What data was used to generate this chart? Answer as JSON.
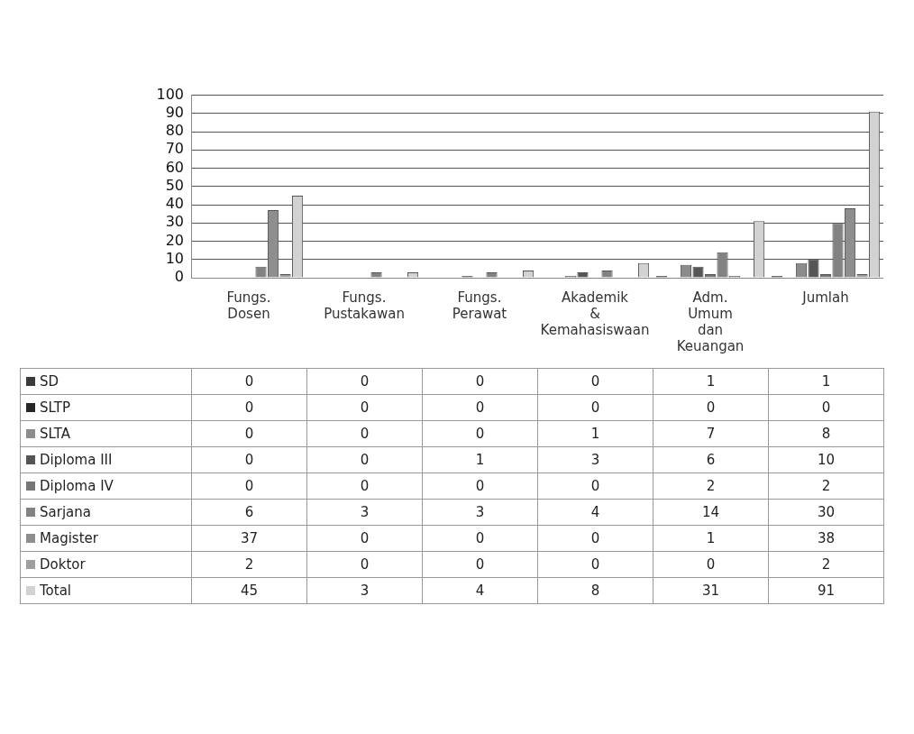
{
  "chart_data": {
    "type": "bar",
    "categories": [
      "Fungs. Dosen",
      "Fungs. Pustakawan",
      "Fungs. Perawat",
      "Akademik & Kemahasiswaan",
      "Adm. Umum dan Keuangan",
      "Jumlah"
    ],
    "series": [
      {
        "name": "SD",
        "color": "#3a3a3a",
        "values": [
          0,
          0,
          0,
          0,
          1,
          1
        ]
      },
      {
        "name": "SLTP",
        "color": "#262626",
        "values": [
          0,
          0,
          0,
          0,
          0,
          0
        ]
      },
      {
        "name": "SLTA",
        "color": "#8c8c8c",
        "values": [
          0,
          0,
          0,
          1,
          7,
          8
        ]
      },
      {
        "name": "Diploma III",
        "color": "#555555",
        "values": [
          0,
          0,
          1,
          3,
          6,
          10
        ]
      },
      {
        "name": "Diploma IV",
        "color": "#767676",
        "values": [
          0,
          0,
          0,
          0,
          2,
          2
        ]
      },
      {
        "name": "Sarjana",
        "color": "#828282",
        "values": [
          6,
          3,
          3,
          4,
          14,
          30
        ]
      },
      {
        "name": "Magister",
        "color": "#8e8e8e",
        "values": [
          37,
          0,
          0,
          0,
          1,
          38
        ]
      },
      {
        "name": "Doktor",
        "color": "#9e9e9e",
        "values": [
          2,
          0,
          0,
          0,
          0,
          2
        ]
      },
      {
        "name": "Total",
        "color": "#d2d2d2",
        "values": [
          45,
          3,
          4,
          8,
          31,
          91
        ]
      }
    ],
    "ylim": [
      0,
      100
    ],
    "yticks": [
      0,
      10,
      20,
      30,
      40,
      50,
      60,
      70,
      80,
      90,
      100
    ],
    "grid": "y",
    "legend": "bottom",
    "data_labels": true
  }
}
